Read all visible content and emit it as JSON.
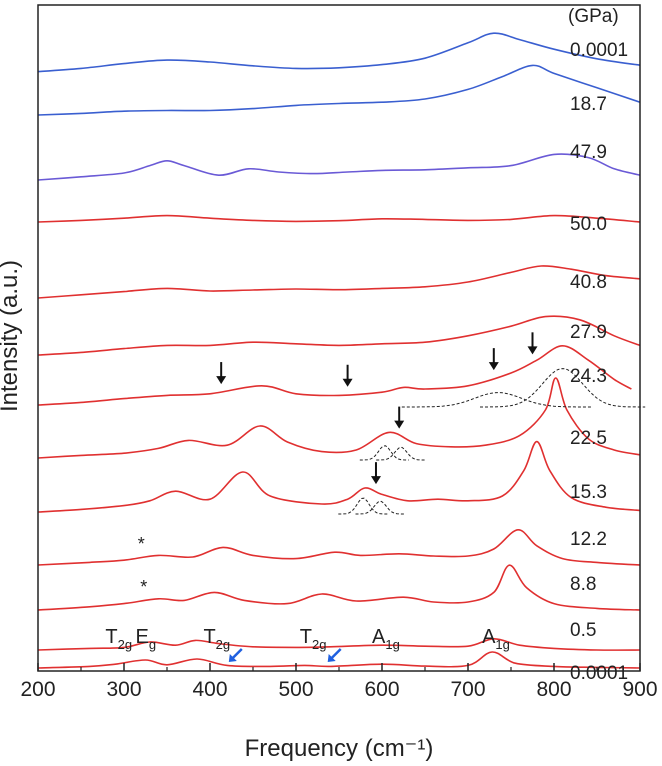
{
  "chart_data": {
    "type": "line",
    "xlabel": "Frequency (cm⁻¹)",
    "ylabel": "Intensity (a.u.)",
    "xlim": [
      200,
      900
    ],
    "xticks": [
      "200",
      "300",
      "400",
      "500",
      "600",
      "700",
      "800",
      "900"
    ],
    "unit_header": "(GPa)",
    "series_colors": {
      "blue": "#3a5fd0",
      "purple": "#6a5ad6",
      "red": "#e03030"
    },
    "series": [
      {
        "name": "0.0001",
        "color": "#3a5fd0",
        "points": [
          [
            200,
            0.2
          ],
          [
            250,
            0.3
          ],
          [
            300,
            0.45
          ],
          [
            350,
            0.56
          ],
          [
            400,
            0.5
          ],
          [
            450,
            0.38
          ],
          [
            500,
            0.3
          ],
          [
            550,
            0.32
          ],
          [
            600,
            0.42
          ],
          [
            650,
            0.62
          ],
          [
            700,
            1.1
          ],
          [
            730,
            1.4
          ],
          [
            760,
            1.2
          ],
          [
            800,
            0.9
          ],
          [
            850,
            0.6
          ],
          [
            900,
            0.4
          ]
        ]
      },
      {
        "name": "18.7",
        "color": "#3a5fd0",
        "points": [
          [
            200,
            0.0
          ],
          [
            250,
            0.05
          ],
          [
            300,
            0.12
          ],
          [
            350,
            0.14
          ],
          [
            400,
            0.14
          ],
          [
            450,
            0.2
          ],
          [
            500,
            0.3
          ],
          [
            550,
            0.36
          ],
          [
            600,
            0.4
          ],
          [
            650,
            0.5
          ],
          [
            700,
            0.8
          ],
          [
            740,
            1.2
          ],
          [
            775,
            1.55
          ],
          [
            800,
            1.3
          ],
          [
            850,
            0.85
          ],
          [
            900,
            0.4
          ]
        ]
      },
      {
        "name": "47.9",
        "color": "#6a5ad6",
        "points": [
          [
            200,
            0.0
          ],
          [
            250,
            0.1
          ],
          [
            300,
            0.22
          ],
          [
            330,
            0.45
          ],
          [
            350,
            0.6
          ],
          [
            370,
            0.45
          ],
          [
            410,
            0.15
          ],
          [
            445,
            0.35
          ],
          [
            480,
            0.25
          ],
          [
            520,
            0.2
          ],
          [
            560,
            0.25
          ],
          [
            600,
            0.3
          ],
          [
            650,
            0.32
          ],
          [
            700,
            0.38
          ],
          [
            750,
            0.45
          ],
          [
            800,
            0.8
          ],
          [
            840,
            0.7
          ],
          [
            870,
            0.35
          ],
          [
            900,
            0.15
          ]
        ]
      },
      {
        "name": "50.0",
        "color": "#e03030",
        "points": [
          [
            200,
            0.0
          ],
          [
            250,
            0.05
          ],
          [
            300,
            0.12
          ],
          [
            350,
            0.2
          ],
          [
            400,
            0.12
          ],
          [
            450,
            0.05
          ],
          [
            500,
            0.02
          ],
          [
            550,
            0.04
          ],
          [
            600,
            0.1
          ],
          [
            650,
            0.08
          ],
          [
            700,
            0.05
          ],
          [
            750,
            0.08
          ],
          [
            800,
            0.2
          ],
          [
            850,
            0.12
          ],
          [
            900,
            0.0
          ]
        ]
      },
      {
        "name": "40.8",
        "color": "#e03030",
        "points": [
          [
            200,
            0.0
          ],
          [
            250,
            0.1
          ],
          [
            300,
            0.2
          ],
          [
            350,
            0.3
          ],
          [
            400,
            0.22
          ],
          [
            450,
            0.25
          ],
          [
            500,
            0.28
          ],
          [
            550,
            0.26
          ],
          [
            600,
            0.3
          ],
          [
            650,
            0.35
          ],
          [
            700,
            0.5
          ],
          [
            750,
            0.8
          ],
          [
            785,
            1.0
          ],
          [
            820,
            0.9
          ],
          [
            860,
            0.7
          ],
          [
            900,
            0.6
          ]
        ]
      },
      {
        "name": "27.9",
        "color": "#e03030",
        "points": [
          [
            200,
            0.0
          ],
          [
            250,
            0.08
          ],
          [
            300,
            0.2
          ],
          [
            350,
            0.3
          ],
          [
            400,
            0.3
          ],
          [
            450,
            0.4
          ],
          [
            500,
            0.35
          ],
          [
            550,
            0.3
          ],
          [
            600,
            0.35
          ],
          [
            650,
            0.4
          ],
          [
            700,
            0.6
          ],
          [
            750,
            0.9
          ],
          [
            790,
            1.2
          ],
          [
            830,
            1.1
          ],
          [
            870,
            0.6
          ],
          [
            900,
            0.3
          ]
        ]
      },
      {
        "name": "24.3",
        "color": "#e03030",
        "points": [
          [
            200,
            0.0
          ],
          [
            250,
            0.08
          ],
          [
            300,
            0.2
          ],
          [
            350,
            0.3
          ],
          [
            400,
            0.35
          ],
          [
            460,
            0.6
          ],
          [
            500,
            0.35
          ],
          [
            550,
            0.3
          ],
          [
            600,
            0.4
          ],
          [
            625,
            0.55
          ],
          [
            650,
            0.5
          ],
          [
            700,
            0.6
          ],
          [
            750,
            1.0
          ],
          [
            780,
            1.4
          ],
          [
            810,
            1.85
          ],
          [
            840,
            1.4
          ],
          [
            870,
            0.8
          ],
          [
            890,
            0.5
          ]
        ]
      },
      {
        "name": "22.5",
        "color": "#e03030",
        "points": [
          [
            200,
            0.0
          ],
          [
            250,
            0.08
          ],
          [
            300,
            0.15
          ],
          [
            340,
            0.3
          ],
          [
            375,
            0.55
          ],
          [
            420,
            0.4
          ],
          [
            458,
            1.0
          ],
          [
            490,
            0.5
          ],
          [
            530,
            0.2
          ],
          [
            570,
            0.25
          ],
          [
            608,
            0.8
          ],
          [
            640,
            0.45
          ],
          [
            680,
            0.35
          ],
          [
            720,
            0.4
          ],
          [
            760,
            0.7
          ],
          [
            790,
            1.5
          ],
          [
            802,
            2.5
          ],
          [
            815,
            1.5
          ],
          [
            840,
            0.6
          ],
          [
            870,
            0.25
          ],
          [
            900,
            0.1
          ]
        ]
      },
      {
        "name": "15.3",
        "color": "#e03030",
        "points": [
          [
            200,
            0.0
          ],
          [
            250,
            0.08
          ],
          [
            300,
            0.2
          ],
          [
            330,
            0.35
          ],
          [
            360,
            0.65
          ],
          [
            400,
            0.4
          ],
          [
            438,
            1.25
          ],
          [
            470,
            0.5
          ],
          [
            530,
            0.25
          ],
          [
            560,
            0.4
          ],
          [
            580,
            0.75
          ],
          [
            600,
            0.55
          ],
          [
            630,
            0.35
          ],
          [
            665,
            0.4
          ],
          [
            700,
            0.35
          ],
          [
            740,
            0.5
          ],
          [
            765,
            1.3
          ],
          [
            780,
            2.2
          ],
          [
            795,
            1.3
          ],
          [
            820,
            0.45
          ],
          [
            860,
            0.15
          ],
          [
            900,
            0.05
          ]
        ]
      },
      {
        "name": "12.2",
        "color": "#e03030",
        "points": [
          [
            200,
            0.0
          ],
          [
            260,
            0.08
          ],
          [
            300,
            0.15
          ],
          [
            340,
            0.3
          ],
          [
            380,
            0.25
          ],
          [
            415,
            0.55
          ],
          [
            450,
            0.3
          ],
          [
            500,
            0.2
          ],
          [
            545,
            0.4
          ],
          [
            575,
            0.3
          ],
          [
            620,
            0.35
          ],
          [
            660,
            0.28
          ],
          [
            700,
            0.28
          ],
          [
            730,
            0.5
          ],
          [
            758,
            1.1
          ],
          [
            780,
            0.6
          ],
          [
            810,
            0.2
          ],
          [
            850,
            0.08
          ],
          [
            900,
            0.0
          ]
        ]
      },
      {
        "name": "8.8",
        "color": "#e03030",
        "points": [
          [
            200,
            0.0
          ],
          [
            260,
            0.1
          ],
          [
            300,
            0.2
          ],
          [
            340,
            0.35
          ],
          [
            370,
            0.3
          ],
          [
            405,
            0.55
          ],
          [
            440,
            0.3
          ],
          [
            490,
            0.2
          ],
          [
            530,
            0.5
          ],
          [
            570,
            0.28
          ],
          [
            625,
            0.4
          ],
          [
            660,
            0.25
          ],
          [
            700,
            0.25
          ],
          [
            730,
            0.55
          ],
          [
            748,
            1.4
          ],
          [
            768,
            0.7
          ],
          [
            800,
            0.2
          ],
          [
            850,
            0.05
          ],
          [
            900,
            0.0
          ]
        ]
      },
      {
        "name": "0.5",
        "color": "#e03030",
        "points": [
          [
            200,
            0.0
          ],
          [
            260,
            0.05
          ],
          [
            300,
            0.08
          ],
          [
            330,
            0.25
          ],
          [
            360,
            0.15
          ],
          [
            383,
            0.3
          ],
          [
            410,
            0.2
          ],
          [
            450,
            0.1
          ],
          [
            500,
            0.08
          ],
          [
            540,
            0.1
          ],
          [
            600,
            0.15
          ],
          [
            650,
            0.12
          ],
          [
            700,
            0.12
          ],
          [
            730,
            0.35
          ],
          [
            760,
            0.15
          ],
          [
            800,
            0.05
          ],
          [
            850,
            0.0
          ],
          [
            900,
            0.0
          ]
        ]
      },
      {
        "name": "0.0001",
        "color": "#e03030",
        "points": [
          [
            200,
            0.0
          ],
          [
            260,
            0.05
          ],
          [
            290,
            0.12
          ],
          [
            325,
            0.25
          ],
          [
            350,
            0.1
          ],
          [
            385,
            0.28
          ],
          [
            420,
            0.08
          ],
          [
            470,
            0.05
          ],
          [
            510,
            0.08
          ],
          [
            540,
            0.05
          ],
          [
            600,
            0.12
          ],
          [
            650,
            0.06
          ],
          [
            700,
            0.08
          ],
          [
            728,
            0.5
          ],
          [
            755,
            0.15
          ],
          [
            800,
            0.05
          ],
          [
            850,
            0.02
          ],
          [
            900,
            0.0
          ]
        ]
      }
    ],
    "fits": [
      {
        "spectrum": "24.3",
        "center": 735,
        "width": 70,
        "amp": 0.45
      },
      {
        "spectrum": "24.3",
        "center": 810,
        "width": 60,
        "amp": 1.2
      },
      {
        "spectrum": "22.5",
        "center": 603,
        "width": 18,
        "amp": 0.45
      },
      {
        "spectrum": "22.5",
        "center": 622,
        "width": 18,
        "amp": 0.4
      },
      {
        "spectrum": "15.3",
        "center": 578,
        "width": 18,
        "amp": 0.5
      },
      {
        "spectrum": "15.3",
        "center": 598,
        "width": 18,
        "amp": 0.4
      }
    ],
    "arrows_black": [
      {
        "spectrum": "24.3",
        "x": 413
      },
      {
        "spectrum": "24.3",
        "x": 560
      },
      {
        "spectrum": "24.3",
        "x": 730
      },
      {
        "spectrum": "24.3",
        "x": 775
      },
      {
        "spectrum": "22.5",
        "x": 620
      },
      {
        "spectrum": "15.3",
        "x": 593
      }
    ],
    "arrows_blue": [
      {
        "x": 430
      },
      {
        "x": 545
      }
    ],
    "asterisks": [
      {
        "spectrum": "12.2",
        "x": 320,
        "text": "*"
      },
      {
        "spectrum": "8.8",
        "x": 323,
        "text": "*"
      }
    ],
    "peak_labels": [
      {
        "main": "T",
        "sub": "2g",
        "x": 290
      },
      {
        "main": "E",
        "sub": "g",
        "x": 325
      },
      {
        "main": "T",
        "sub": "2g",
        "x": 404
      },
      {
        "main": "T",
        "sub": "2g",
        "x": 516
      },
      {
        "main": "A",
        "sub": "1g",
        "x": 600
      },
      {
        "main": "A",
        "sub": "1g",
        "x": 728
      }
    ],
    "pressure_labels": [
      "0.0001",
      "18.7",
      "47.9",
      "50.0",
      "40.8",
      "27.9",
      "24.3",
      "22.5",
      "15.3",
      "12.2",
      "8.8",
      "0.5",
      "0.0001"
    ]
  }
}
